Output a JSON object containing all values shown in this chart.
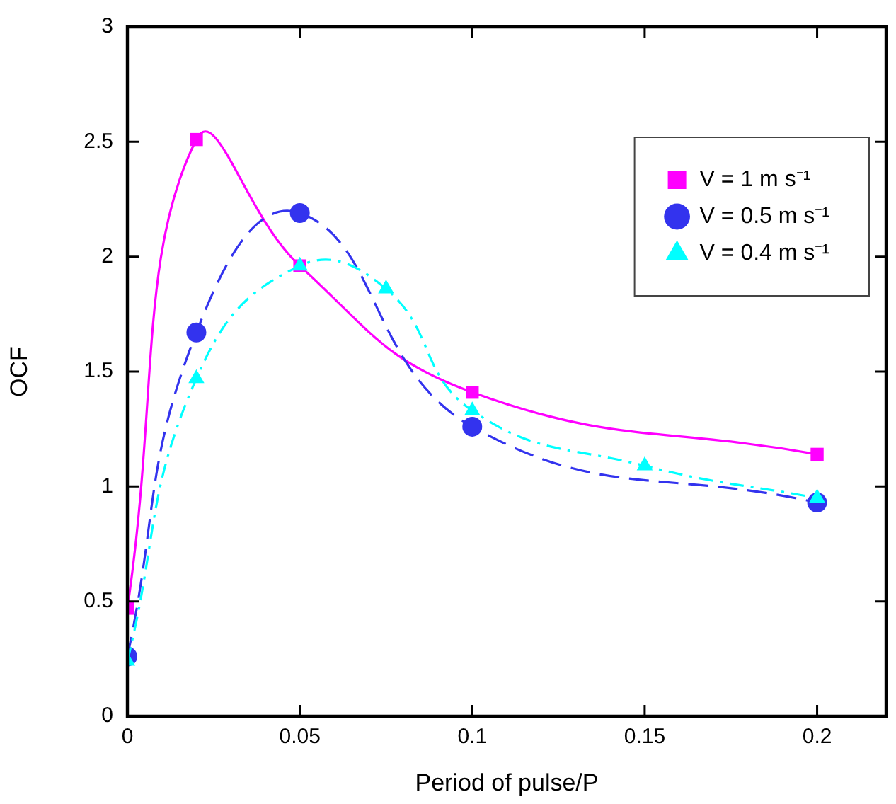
{
  "chart_data": {
    "type": "line",
    "xlabel": "Period of pulse/P",
    "ylabel": "OCF",
    "xlim": [
      0,
      0.22
    ],
    "xticks": [
      0,
      0.05,
      0.1,
      0.15,
      0.2
    ],
    "ylim": [
      0,
      3
    ],
    "yticks": [
      0,
      0.5,
      1,
      1.5,
      2,
      2.5,
      3
    ],
    "grid": false,
    "legend": "top right",
    "series": [
      {
        "name": "V = 1 m s⁻¹",
        "color": "#ff00ff",
        "marker": "square",
        "line_style": "solid",
        "x": [
          0,
          0.02,
          0.05,
          0.1,
          0.2
        ],
        "values": [
          0.47,
          2.51,
          1.96,
          1.41,
          1.14
        ]
      },
      {
        "name": "V = 0.5 m s⁻¹",
        "color": "#3333ee",
        "marker": "circle",
        "line_style": "dashed",
        "x": [
          0,
          0.02,
          0.05,
          0.1,
          0.2
        ],
        "values": [
          0.26,
          1.67,
          2.19,
          1.26,
          0.93
        ]
      },
      {
        "name": "V = 0.4 m s⁻¹",
        "color": "#00ffff",
        "marker": "triangle",
        "line_style": "dashdot",
        "x": [
          0,
          0.02,
          0.05,
          0.075,
          0.1,
          0.15,
          0.2
        ],
        "values": [
          0.24,
          1.47,
          1.96,
          1.86,
          1.33,
          1.09,
          0.95
        ]
      }
    ]
  }
}
